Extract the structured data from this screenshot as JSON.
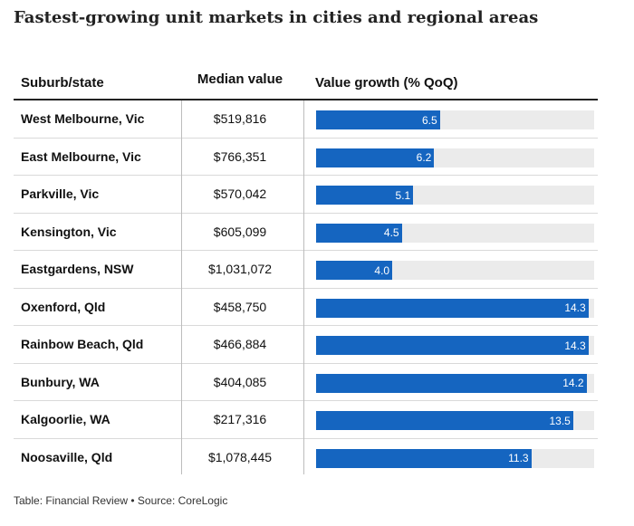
{
  "title": "Fastest-growing unit markets in cities and regional areas",
  "headers": {
    "suburb": "Suburb/state",
    "median": "Median value",
    "growth": "Value growth (% QoQ)"
  },
  "footer": "Table: Financial Review • Source: CoreLogic",
  "colors": {
    "bar": "#1565c0",
    "track": "#ebebeb"
  },
  "chart_data": {
    "type": "table",
    "columns": [
      "Suburb/state",
      "Median value",
      "Value growth (% QoQ)"
    ],
    "bar_max": 14.6,
    "rows": [
      {
        "suburb": "West Melbourne, Vic",
        "median": "$519,816",
        "growth": 6.5,
        "growth_label": "6.5"
      },
      {
        "suburb": "East Melbourne, Vic",
        "median": "$766,351",
        "growth": 6.2,
        "growth_label": "6.2"
      },
      {
        "suburb": "Parkville, Vic",
        "median": "$570,042",
        "growth": 5.1,
        "growth_label": "5.1"
      },
      {
        "suburb": "Kensington, Vic",
        "median": "$605,099",
        "growth": 4.5,
        "growth_label": "4.5"
      },
      {
        "suburb": "Eastgardens, NSW",
        "median": "$1,031,072",
        "growth": 4.0,
        "growth_label": "4.0"
      },
      {
        "suburb": "Oxenford, Qld",
        "median": "$458,750",
        "growth": 14.3,
        "growth_label": "14.3"
      },
      {
        "suburb": "Rainbow Beach, Qld",
        "median": "$466,884",
        "growth": 14.3,
        "growth_label": "14.3"
      },
      {
        "suburb": "Bunbury, WA",
        "median": "$404,085",
        "growth": 14.2,
        "growth_label": "14.2"
      },
      {
        "suburb": "Kalgoorlie, WA",
        "median": "$217,316",
        "growth": 13.5,
        "growth_label": "13.5"
      },
      {
        "suburb": "Noosaville, Qld",
        "median": "$1,078,445",
        "growth": 11.3,
        "growth_label": "11.3"
      }
    ]
  }
}
